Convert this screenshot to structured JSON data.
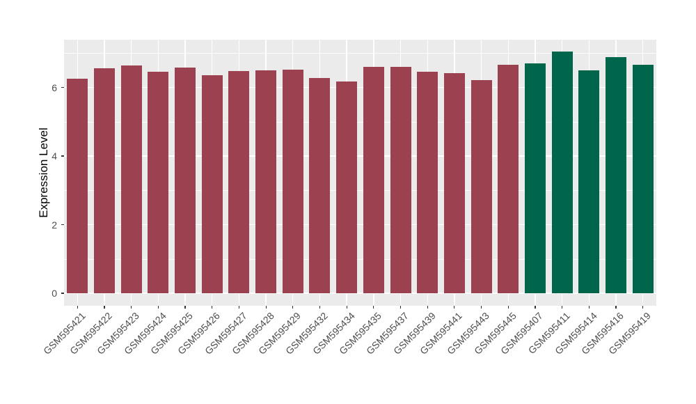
{
  "chart_data": {
    "type": "bar",
    "title": "",
    "xlabel": "",
    "ylabel": "Expression Level",
    "categories": [
      "GSM595421",
      "GSM595422",
      "GSM595423",
      "GSM595424",
      "GSM595425",
      "GSM595426",
      "GSM595427",
      "GSM595428",
      "GSM595429",
      "GSM595432",
      "GSM595434",
      "GSM595435",
      "GSM595437",
      "GSM595439",
      "GSM595441",
      "GSM595443",
      "GSM595445",
      "GSM595407",
      "GSM595411",
      "GSM595414",
      "GSM595416",
      "GSM595419"
    ],
    "values": [
      6.25,
      6.55,
      6.64,
      6.46,
      6.58,
      6.36,
      6.48,
      6.5,
      6.52,
      6.28,
      6.18,
      6.6,
      6.6,
      6.46,
      6.42,
      6.21,
      6.67,
      6.71,
      7.05,
      6.5,
      6.89,
      6.65
    ],
    "bar_colors": [
      "#9B4150",
      "#9B4150",
      "#9B4150",
      "#9B4150",
      "#9B4150",
      "#9B4150",
      "#9B4150",
      "#9B4150",
      "#9B4150",
      "#9B4150",
      "#9B4150",
      "#9B4150",
      "#9B4150",
      "#9B4150",
      "#9B4150",
      "#9B4150",
      "#9B4150",
      "#00664B",
      "#00664B",
      "#00664B",
      "#00664B",
      "#00664B"
    ],
    "palette": {
      "group1_color": "#9B4150",
      "group2_color": "#00664B"
    },
    "yticks_major": [
      0,
      2,
      4,
      6
    ],
    "ytick_labels": [
      "0",
      "2",
      "4",
      "6"
    ],
    "yticks_minor": [
      1,
      3,
      5,
      7
    ],
    "ylim": [
      -0.37,
      7.39
    ],
    "grid": true,
    "legend": false,
    "panel_bg": "#EBEBEB",
    "grid_color": "#FFFFFF",
    "tick_label_color": "#4D4D4D",
    "axis_title_color": "#000000"
  }
}
